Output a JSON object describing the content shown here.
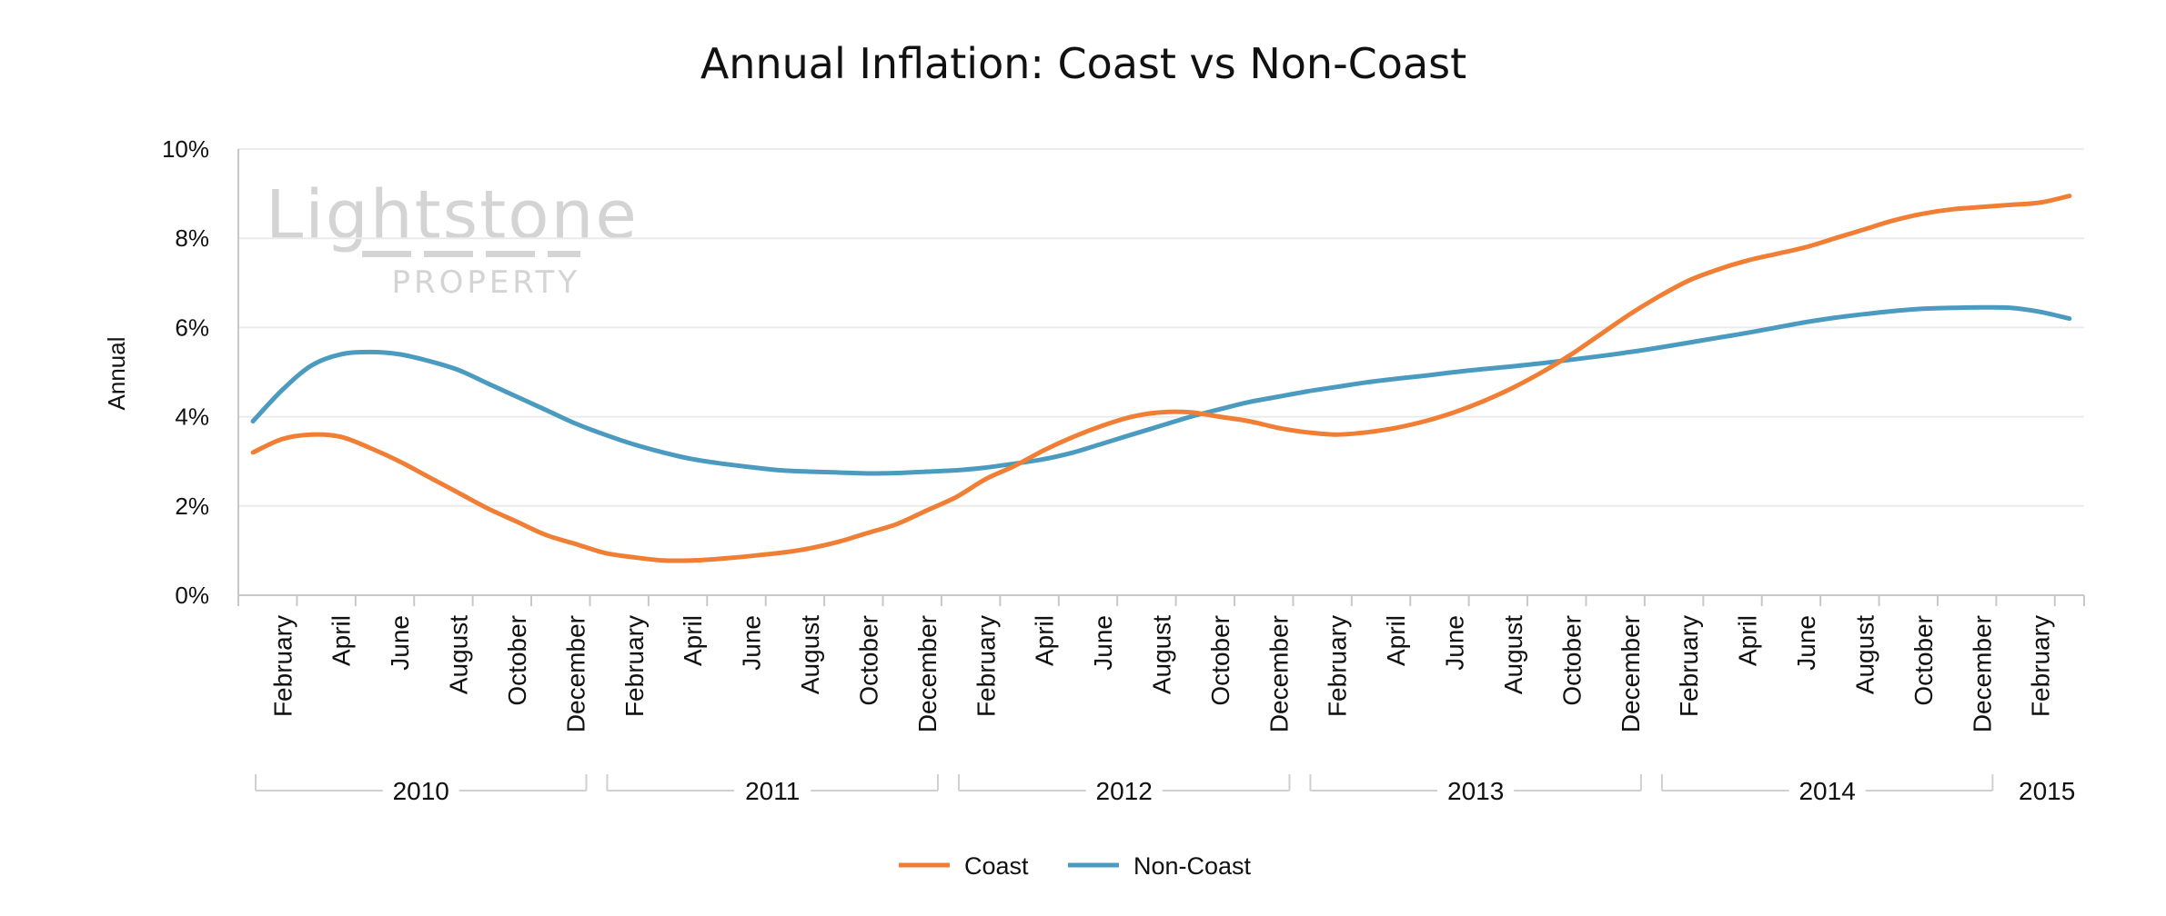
{
  "chart_data": {
    "type": "line",
    "title": "Annual Inflation: Coast vs Non-Coast",
    "ylabel": "Annual",
    "ylim": [
      0,
      10
    ],
    "y_ticks": [
      "0%",
      "2%",
      "4%",
      "6%",
      "8%",
      "10%"
    ],
    "grid": true,
    "legend_position": "bottom-center",
    "watermark": {
      "line1": "Lightstone",
      "line2": "PROPERTY"
    },
    "x": [
      "2010-01",
      "2010-02",
      "2010-03",
      "2010-04",
      "2010-05",
      "2010-06",
      "2010-07",
      "2010-08",
      "2010-09",
      "2010-10",
      "2010-11",
      "2010-12",
      "2011-01",
      "2011-02",
      "2011-03",
      "2011-04",
      "2011-05",
      "2011-06",
      "2011-07",
      "2011-08",
      "2011-09",
      "2011-10",
      "2011-11",
      "2011-12",
      "2012-01",
      "2012-02",
      "2012-03",
      "2012-04",
      "2012-05",
      "2012-06",
      "2012-07",
      "2012-08",
      "2012-09",
      "2012-10",
      "2012-11",
      "2012-12",
      "2013-01",
      "2013-02",
      "2013-03",
      "2013-04",
      "2013-05",
      "2013-06",
      "2013-07",
      "2013-08",
      "2013-09",
      "2013-10",
      "2013-11",
      "2013-12",
      "2014-01",
      "2014-02",
      "2014-03",
      "2014-04",
      "2014-05",
      "2014-06",
      "2014-07",
      "2014-08",
      "2014-09",
      "2014-10",
      "2014-11",
      "2014-12",
      "2015-01",
      "2015-02",
      "2015-03"
    ],
    "x_tick_labels": [
      "February",
      "April",
      "June",
      "August",
      "October",
      "December",
      "February",
      "April",
      "June",
      "August",
      "October",
      "December",
      "February",
      "April",
      "June",
      "August",
      "October",
      "December",
      "February",
      "April",
      "June",
      "August",
      "October",
      "December",
      "February",
      "April",
      "June",
      "August",
      "October",
      "December",
      "February"
    ],
    "years": [
      {
        "label": "2010",
        "start": "2010-01",
        "end": "2010-12"
      },
      {
        "label": "2011",
        "start": "2011-01",
        "end": "2011-12"
      },
      {
        "label": "2012",
        "start": "2012-01",
        "end": "2012-12"
      },
      {
        "label": "2013",
        "start": "2013-01",
        "end": "2013-12"
      },
      {
        "label": "2014",
        "start": "2014-01",
        "end": "2014-12"
      },
      {
        "label": "2015",
        "start": "2015-01",
        "end": "2015-03"
      }
    ],
    "series": [
      {
        "name": "Coast",
        "color": "#f07f35",
        "values": [
          3.2,
          3.5,
          3.6,
          3.55,
          3.3,
          3.0,
          2.65,
          2.3,
          1.95,
          1.65,
          1.35,
          1.15,
          0.95,
          0.85,
          0.78,
          0.78,
          0.82,
          0.88,
          0.95,
          1.05,
          1.2,
          1.4,
          1.6,
          1.9,
          2.2,
          2.6,
          2.9,
          3.25,
          3.55,
          3.8,
          4.0,
          4.1,
          4.1,
          4.0,
          3.9,
          3.75,
          3.65,
          3.6,
          3.65,
          3.75,
          3.9,
          4.1,
          4.35,
          4.65,
          5.0,
          5.4,
          5.85,
          6.3,
          6.7,
          7.05,
          7.3,
          7.5,
          7.65,
          7.8,
          8.0,
          8.2,
          8.4,
          8.55,
          8.65,
          8.7,
          8.75,
          8.8,
          8.95
        ]
      },
      {
        "name": "Non-Coast",
        "color": "#4a9bbf",
        "values": [
          3.9,
          4.6,
          5.15,
          5.4,
          5.45,
          5.4,
          5.25,
          5.05,
          4.75,
          4.45,
          4.15,
          3.85,
          3.6,
          3.38,
          3.2,
          3.05,
          2.95,
          2.87,
          2.8,
          2.77,
          2.75,
          2.73,
          2.74,
          2.77,
          2.8,
          2.86,
          2.95,
          3.05,
          3.2,
          3.4,
          3.6,
          3.8,
          4.0,
          4.17,
          4.33,
          4.45,
          4.57,
          4.67,
          4.77,
          4.85,
          4.92,
          5.0,
          5.07,
          5.13,
          5.2,
          5.28,
          5.36,
          5.45,
          5.55,
          5.66,
          5.77,
          5.88,
          6.0,
          6.12,
          6.22,
          6.3,
          6.37,
          6.42,
          6.44,
          6.45,
          6.44,
          6.35,
          6.2
        ]
      }
    ]
  }
}
